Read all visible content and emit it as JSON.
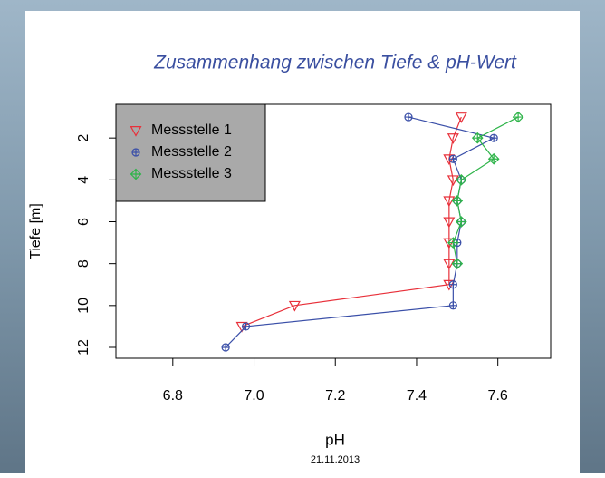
{
  "chart_data": {
    "type": "scatter-line",
    "title": "Zusammenhang zwischen Tiefe & pH-Wert",
    "x_label": "pH",
    "y_label": "Tiefe [m]",
    "footer": "21.11.2013",
    "xlim": [
      6.66,
      7.73
    ],
    "ylim": [
      12.52,
      0.39
    ],
    "xticks": [
      6.8,
      {
        "value": 7,
        "label": "7.0"
      },
      7.2,
      7.4,
      7.6
    ],
    "yticks": [
      2,
      4,
      6,
      8,
      10,
      12
    ],
    "legend": "top-left",
    "series": [
      {
        "name": "Messstelle 1",
        "color": "#e8303a",
        "marker": "triangle-down",
        "x": [
          7.51,
          7.49,
          7.48,
          7.49,
          7.48,
          7.48,
          7.48,
          7.48,
          7.48,
          7.1,
          6.97
        ],
        "values": [
          1,
          2,
          3,
          4,
          5,
          6,
          7,
          8,
          9,
          10,
          11
        ]
      },
      {
        "name": "Messstelle 2",
        "color": "#3a4fa8",
        "marker": "circle-plus",
        "x": [
          7.38,
          7.59,
          7.49,
          7.51,
          7.5,
          7.51,
          7.5,
          7.5,
          7.49,
          7.49,
          6.98,
          6.93
        ],
        "values": [
          1,
          2,
          3,
          4,
          5,
          6,
          7,
          8,
          9,
          10,
          11,
          12
        ]
      },
      {
        "name": "Messstelle 3",
        "color": "#2fb44a",
        "marker": "diamond-plus",
        "x": [
          7.65,
          7.55,
          7.59,
          7.51,
          7.5,
          7.51,
          7.49,
          7.5
        ],
        "values": [
          1,
          2,
          3,
          4,
          5,
          6,
          7,
          8
        ]
      }
    ]
  }
}
